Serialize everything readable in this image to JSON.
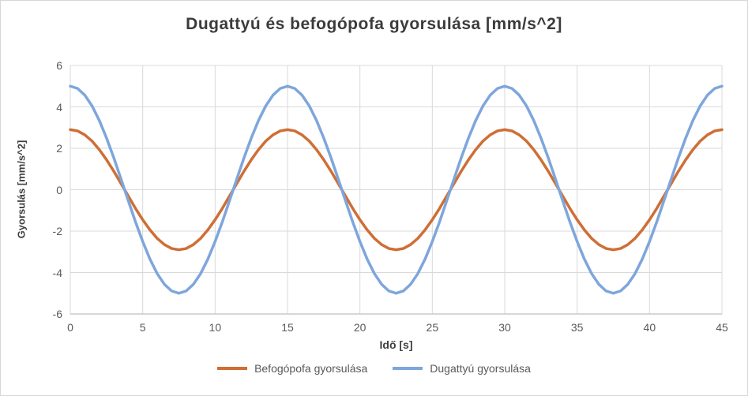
{
  "chart_data": {
    "type": "line",
    "title": "Dugattyú és befogópofa gyorsulása [mm/s^2]",
    "xlabel": "Idő [s]",
    "ylabel": "Gyorsulás [mm/s^2]",
    "xlim": [
      0,
      45
    ],
    "ylim": [
      -6,
      6
    ],
    "x_ticks": [
      0,
      5,
      10,
      15,
      20,
      25,
      30,
      35,
      40,
      45
    ],
    "y_ticks": [
      -6,
      -4,
      -2,
      0,
      2,
      4,
      6
    ],
    "grid": true,
    "legend_position": "bottom",
    "x_start": 0,
    "x_step": 0.5,
    "colors": {
      "gridline": "#d9d9d9",
      "axis_line": "#bfbfbf",
      "tick_text": "#595959",
      "title_text": "#3b3b3b"
    },
    "series": [
      {
        "name": "Befogópofa gyorsulása",
        "color": "#ce6f35",
        "amplitude": 2.9,
        "period": 15,
        "values": [
          2.9,
          2.84,
          2.65,
          2.35,
          1.94,
          1.45,
          0.9,
          0.3,
          -0.3,
          -0.9,
          -1.45,
          -1.94,
          -2.35,
          -2.65,
          -2.84,
          -2.9,
          -2.84,
          -2.65,
          -2.35,
          -1.94,
          -1.45,
          -0.9,
          -0.3,
          0.3,
          0.9,
          1.45,
          1.94,
          2.35,
          2.65,
          2.84,
          2.9,
          2.84,
          2.65,
          2.35,
          1.94,
          1.45,
          0.9,
          0.3,
          -0.3,
          -0.9,
          -1.45,
          -1.94,
          -2.35,
          -2.65,
          -2.84,
          -2.9,
          -2.84,
          -2.65,
          -2.35,
          -1.94,
          -1.45,
          -0.9,
          -0.3,
          0.3,
          0.9,
          1.45,
          1.94,
          2.35,
          2.65,
          2.84,
          2.9,
          2.84,
          2.65,
          2.35,
          1.94,
          1.45,
          0.9,
          0.3,
          -0.3,
          -0.9,
          -1.45,
          -1.94,
          -2.35,
          -2.65,
          -2.84,
          -2.9,
          -2.84,
          -2.65,
          -2.35,
          -1.94,
          -1.45,
          -0.9,
          -0.3,
          0.3,
          0.9,
          1.45,
          1.94,
          2.35,
          2.65,
          2.84,
          2.9
        ]
      },
      {
        "name": "Dugattyú gyorsulása",
        "color": "#7ea6dc",
        "amplitude": 5,
        "period": 15,
        "values": [
          5,
          4.89,
          4.57,
          4.05,
          3.35,
          2.5,
          1.55,
          0.52,
          -0.52,
          -1.55,
          -2.5,
          -3.35,
          -4.05,
          -4.57,
          -4.89,
          -5,
          -4.89,
          -4.57,
          -4.05,
          -3.35,
          -2.5,
          -1.55,
          -0.52,
          0.52,
          1.55,
          2.5,
          3.35,
          4.05,
          4.57,
          4.89,
          5,
          4.89,
          4.57,
          4.05,
          3.35,
          2.5,
          1.55,
          0.52,
          -0.52,
          -1.55,
          -2.5,
          -3.35,
          -4.05,
          -4.57,
          -4.89,
          -5,
          -4.89,
          -4.57,
          -4.05,
          -3.35,
          -2.5,
          -1.55,
          -0.52,
          0.52,
          1.55,
          2.5,
          3.35,
          4.05,
          4.57,
          4.89,
          5,
          4.89,
          4.57,
          4.05,
          3.35,
          2.5,
          1.55,
          0.52,
          -0.52,
          -1.55,
          -2.5,
          -3.35,
          -4.05,
          -4.57,
          -4.89,
          -5,
          -4.89,
          -4.57,
          -4.05,
          -3.35,
          -2.5,
          -1.55,
          -0.52,
          0.52,
          1.55,
          2.5,
          3.35,
          4.05,
          4.57,
          4.89,
          5
        ]
      }
    ]
  }
}
